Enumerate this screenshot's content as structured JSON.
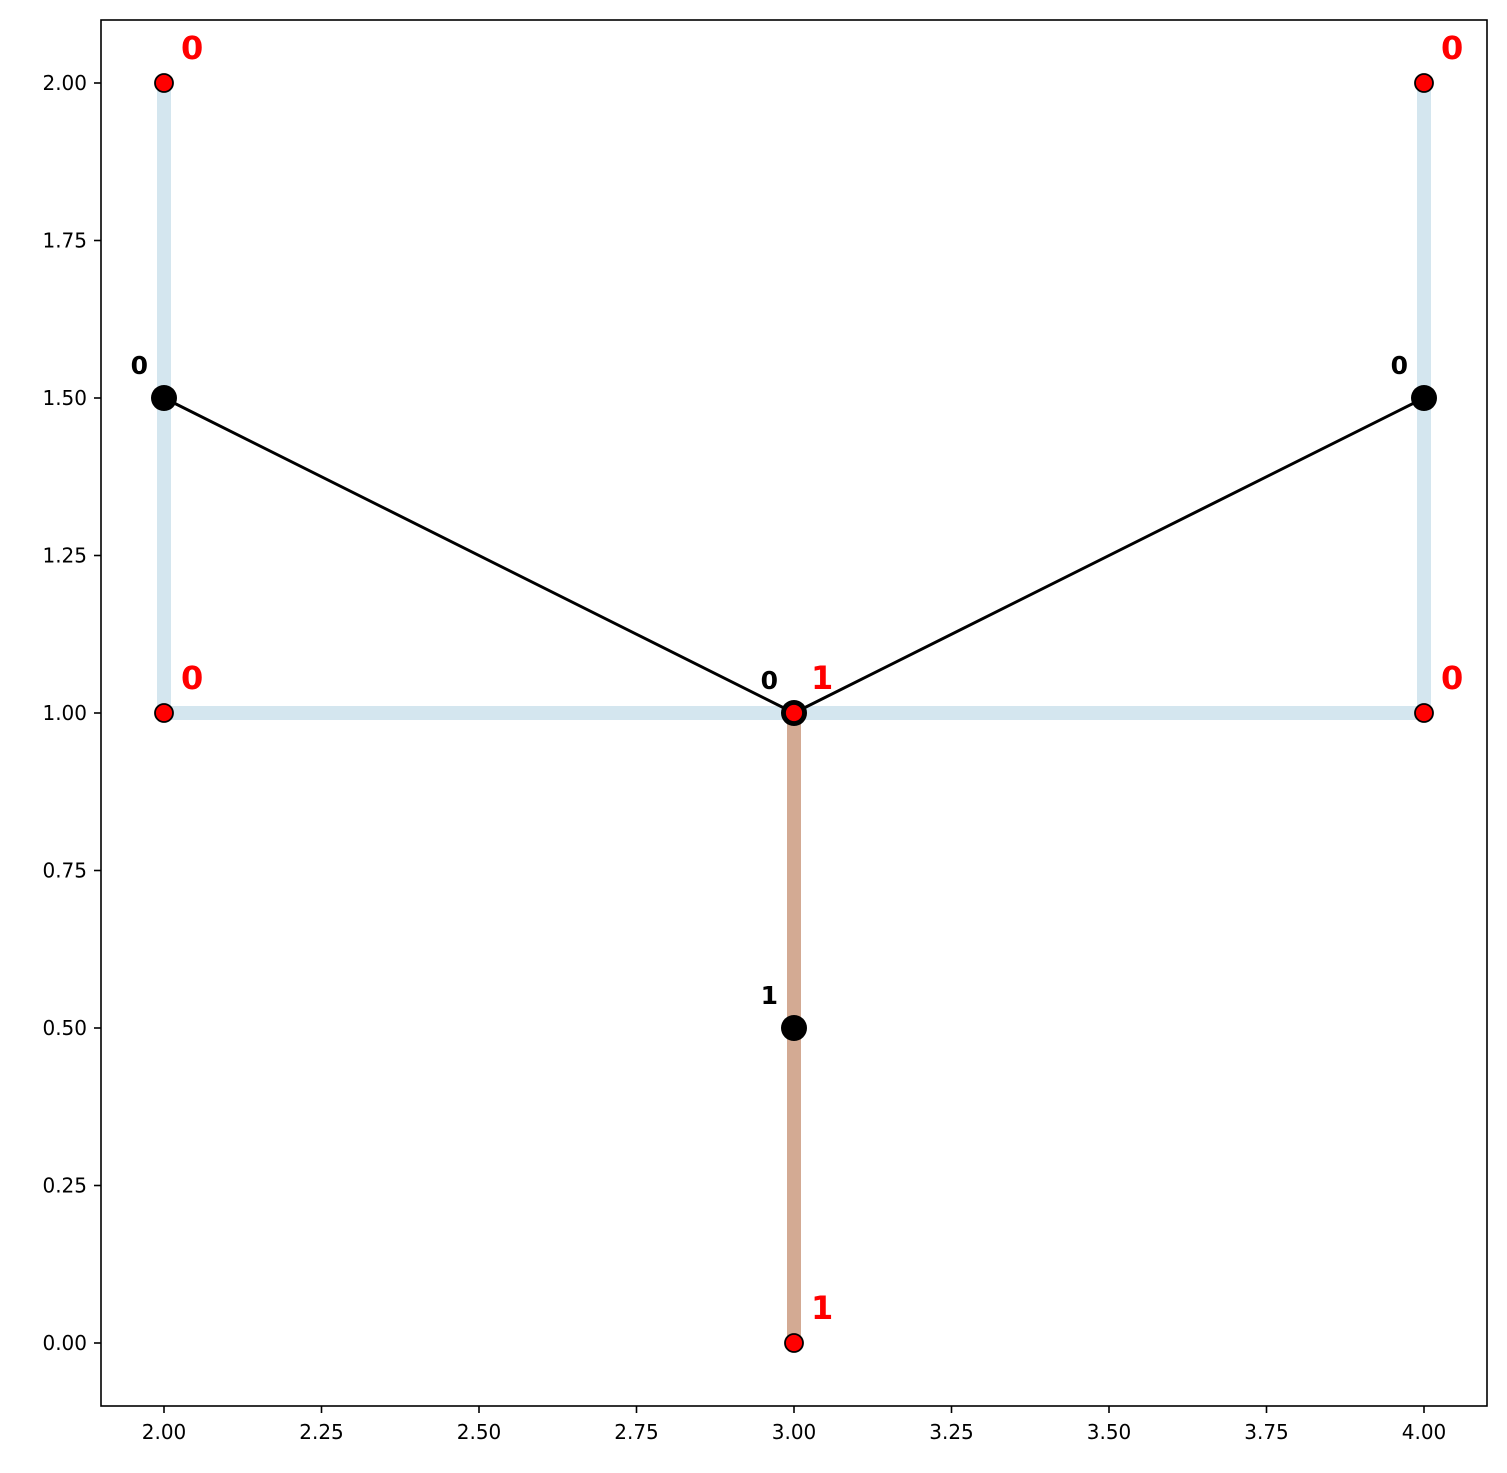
{
  "chart_data": {
    "type": "scatter",
    "title": "",
    "xlabel": "",
    "ylabel": "",
    "xlim": [
      1.9,
      4.1
    ],
    "ylim": [
      -0.1,
      2.1
    ],
    "grid": false,
    "x_ticks": [
      2.0,
      2.25,
      2.5,
      2.75,
      3.0,
      3.25,
      3.5,
      3.75,
      4.0
    ],
    "x_tick_labels": [
      "2.00",
      "2.25",
      "2.50",
      "2.75",
      "3.00",
      "3.25",
      "3.50",
      "3.75",
      "4.00"
    ],
    "y_ticks": [
      0.0,
      0.25,
      0.5,
      0.75,
      1.0,
      1.25,
      1.5,
      1.75,
      2.0
    ],
    "y_tick_labels": [
      "0.00",
      "0.25",
      "0.50",
      "0.75",
      "1.00",
      "1.25",
      "1.50",
      "1.75",
      "2.00"
    ],
    "colors": {
      "cluster_0_edge": "#d4e6ef",
      "cluster_1_edge": "#d3aa93",
      "red_point": "#ff0000",
      "red_label": "#ff0000",
      "black_node": "#000000",
      "black_edge": "#000000"
    },
    "thick_edges": [
      {
        "cluster": 0,
        "from": [
          2.0,
          2.0
        ],
        "to": [
          2.0,
          1.0
        ]
      },
      {
        "cluster": 0,
        "from": [
          2.0,
          1.0
        ],
        "to": [
          3.0,
          1.0
        ]
      },
      {
        "cluster": 0,
        "from": [
          3.0,
          1.0
        ],
        "to": [
          4.0,
          1.0
        ]
      },
      {
        "cluster": 0,
        "from": [
          4.0,
          1.0
        ],
        "to": [
          4.0,
          2.0
        ]
      },
      {
        "cluster": 1,
        "from": [
          3.0,
          1.0
        ],
        "to": [
          3.0,
          0.0
        ]
      }
    ],
    "black_edges": [
      {
        "from": [
          2.0,
          1.5
        ],
        "to": [
          3.0,
          1.0
        ]
      },
      {
        "from": [
          3.0,
          1.0
        ],
        "to": [
          4.0,
          1.5
        ]
      }
    ],
    "black_nodes": [
      {
        "x": 2.0,
        "y": 1.5,
        "label": "0"
      },
      {
        "x": 4.0,
        "y": 1.5,
        "label": "0"
      },
      {
        "x": 3.0,
        "y": 1.0,
        "label": "0"
      },
      {
        "x": 3.0,
        "y": 0.5,
        "label": "1"
      }
    ],
    "red_points": [
      {
        "x": 2.0,
        "y": 2.0,
        "label": "0"
      },
      {
        "x": 4.0,
        "y": 2.0,
        "label": "0"
      },
      {
        "x": 2.0,
        "y": 1.0,
        "label": "0"
      },
      {
        "x": 4.0,
        "y": 1.0,
        "label": "0"
      },
      {
        "x": 3.0,
        "y": 1.0,
        "label": "1"
      },
      {
        "x": 3.0,
        "y": 0.0,
        "label": "1"
      }
    ]
  }
}
